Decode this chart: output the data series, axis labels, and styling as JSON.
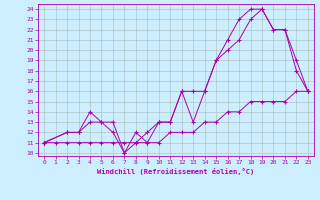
{
  "title": "",
  "xlabel": "Windchill (Refroidissement éolien,°C)",
  "bg_color": "#cceeff",
  "grid_color": "#aacccc",
  "line_color": "#aa00aa",
  "xlim": [
    -0.5,
    23.5
  ],
  "ylim": [
    9.7,
    24.5
  ],
  "xticks": [
    0,
    1,
    2,
    3,
    4,
    5,
    6,
    7,
    8,
    9,
    10,
    11,
    12,
    13,
    14,
    15,
    16,
    17,
    18,
    19,
    20,
    21,
    22,
    23
  ],
  "yticks": [
    10,
    11,
    12,
    13,
    14,
    15,
    16,
    17,
    18,
    19,
    20,
    21,
    22,
    23,
    24
  ],
  "line1_x": [
    0,
    1,
    2,
    3,
    4,
    5,
    6,
    7,
    8,
    9,
    10,
    11,
    12,
    13,
    14,
    15,
    16,
    17,
    18,
    19,
    20,
    21,
    22,
    23
  ],
  "line1_y": [
    11,
    11,
    11,
    11,
    11,
    11,
    11,
    11,
    11,
    11,
    11,
    12,
    12,
    12,
    13,
    13,
    14,
    14,
    15,
    15,
    15,
    15,
    16,
    16
  ],
  "line2_x": [
    0,
    2,
    3,
    4,
    5,
    6,
    7,
    8,
    9,
    10,
    11,
    12,
    13,
    14,
    15,
    16,
    17,
    18,
    19,
    20,
    21,
    22,
    23
  ],
  "line2_y": [
    11,
    12,
    12,
    13,
    13,
    13,
    10,
    11,
    12,
    13,
    13,
    16,
    13,
    16,
    19,
    20,
    21,
    23,
    24,
    22,
    22,
    19,
    16
  ],
  "line3_x": [
    0,
    2,
    3,
    4,
    5,
    6,
    7,
    8,
    9,
    10,
    11,
    12,
    13,
    14,
    15,
    16,
    17,
    18,
    19,
    20,
    21,
    22,
    23
  ],
  "line3_y": [
    11,
    12,
    12,
    14,
    13,
    12,
    10,
    12,
    11,
    13,
    13,
    16,
    16,
    16,
    19,
    21,
    23,
    24,
    24,
    22,
    22,
    18,
    16
  ]
}
